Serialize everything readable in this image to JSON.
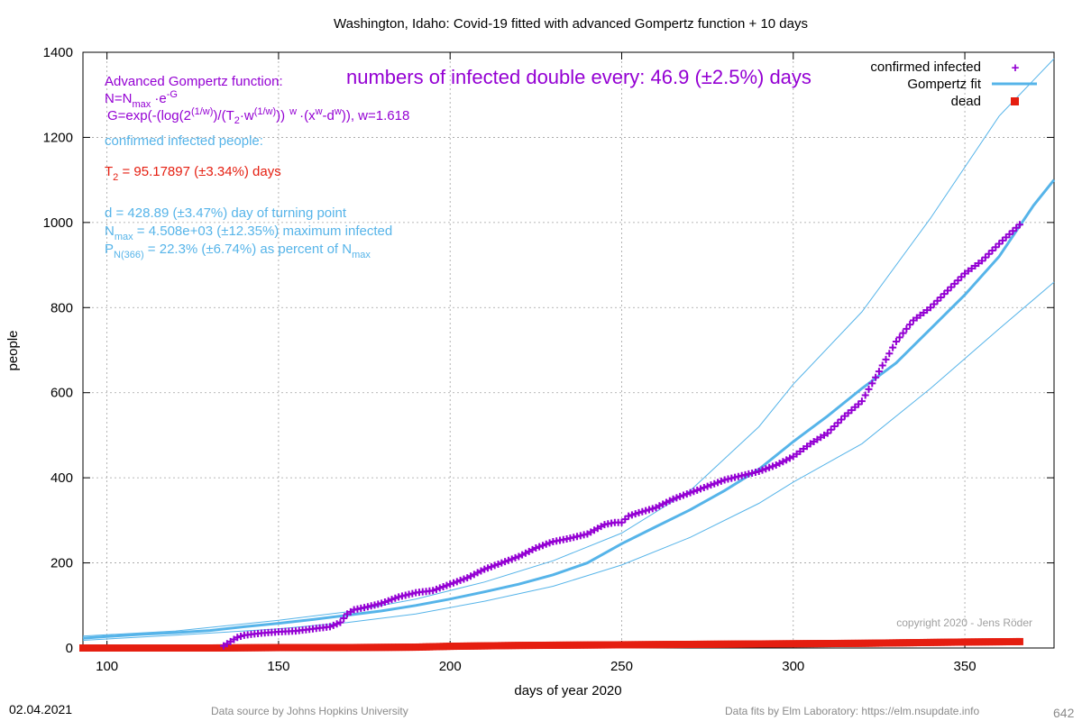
{
  "chart_data": {
    "type": "scatter",
    "title": "Washington,  Idaho: Covid-19 fitted with advanced Gompertz function + 10 days",
    "xlabel": "days of year 2020",
    "ylabel": "people",
    "xlim": [
      93,
      376
    ],
    "ylim": [
      0,
      1400
    ],
    "xticks": [
      100,
      150,
      200,
      250,
      300,
      350
    ],
    "yticks": [
      0,
      200,
      400,
      600,
      800,
      1000,
      1200,
      1400
    ],
    "grid": true,
    "legend_position": "top-right",
    "legend": [
      "confirmed infected",
      "Gompertz fit",
      "dead"
    ],
    "colors": {
      "confirmed": "#9400d3",
      "fit": "#56b4e9",
      "dead": "#e51e10",
      "headline": "#9400d3",
      "t2": "#e51e10",
      "info": "#56b4e9"
    },
    "series": [
      {
        "name": "confirmed infected",
        "kind": "points",
        "x": [
          134,
          136,
          138,
          140,
          145,
          150,
          155,
          160,
          165,
          168,
          170,
          172,
          175,
          180,
          185,
          190,
          195,
          200,
          205,
          210,
          215,
          220,
          225,
          230,
          235,
          240,
          245,
          248,
          250,
          252,
          255,
          260,
          265,
          270,
          275,
          280,
          285,
          290,
          295,
          300,
          305,
          310,
          315,
          320,
          325,
          330,
          335,
          340,
          345,
          350,
          355,
          360,
          366
        ],
        "y": [
          5,
          15,
          25,
          30,
          35,
          38,
          40,
          45,
          50,
          60,
          80,
          90,
          95,
          105,
          120,
          130,
          135,
          150,
          165,
          185,
          200,
          215,
          235,
          250,
          258,
          268,
          290,
          295,
          295,
          310,
          318,
          330,
          350,
          365,
          380,
          395,
          405,
          415,
          430,
          450,
          480,
          505,
          545,
          580,
          650,
          720,
          770,
          800,
          840,
          880,
          910,
          950,
          995
        ]
      },
      {
        "name": "Gompertz fit",
        "kind": "line",
        "x": [
          93,
          100,
          110,
          120,
          130,
          140,
          150,
          160,
          170,
          180,
          190,
          200,
          210,
          220,
          230,
          240,
          250,
          260,
          270,
          280,
          290,
          300,
          310,
          320,
          330,
          340,
          350,
          360,
          370,
          376
        ],
        "y": [
          23,
          27,
          32,
          36,
          41,
          50,
          58,
          67,
          77,
          87,
          100,
          115,
          132,
          150,
          172,
          200,
          245,
          285,
          325,
          370,
          420,
          485,
          545,
          610,
          670,
          750,
          830,
          920,
          1040,
          1100
        ]
      },
      {
        "name": "upper bound",
        "kind": "thin-line",
        "x": [
          93,
          120,
          150,
          170,
          190,
          210,
          230,
          250,
          270,
          290,
          300,
          320,
          340,
          360,
          376
        ],
        "y": [
          28,
          40,
          65,
          85,
          115,
          155,
          205,
          270,
          370,
          520,
          620,
          790,
          1010,
          1250,
          1385
        ]
      },
      {
        "name": "lower bound",
        "kind": "thin-line",
        "x": [
          93,
          120,
          150,
          170,
          190,
          210,
          230,
          250,
          270,
          290,
          300,
          320,
          340,
          360,
          376
        ],
        "y": [
          18,
          30,
          45,
          60,
          80,
          110,
          145,
          195,
          260,
          340,
          390,
          480,
          610,
          750,
          860
        ]
      },
      {
        "name": "dead",
        "kind": "points",
        "x": [
          93,
          110,
          130,
          150,
          170,
          190,
          200,
          220,
          240,
          260,
          280,
          300,
          320,
          340,
          350,
          366
        ],
        "y": [
          0,
          0,
          0,
          1,
          1,
          2,
          4,
          6,
          7,
          8,
          9,
          10,
          11,
          13,
          14,
          15
        ]
      }
    ]
  },
  "annotations": {
    "headline": "numbers of infected double every: 46.9 (±2.5%) days",
    "gompertz_title": "Advanced Gompertz function:",
    "n_eq_prefix": "N=N",
    "n_eq_sub": "max",
    "n_eq_mid": " ·e",
    "n_eq_sup": "-G",
    "g_a": "G=exp(-(log(2",
    "g_b": "(1/w)",
    "g_c": ")/(T",
    "g_d": "2",
    "g_e": "·w",
    "g_f": "(1/w)",
    "g_g": "))",
    "g_h": "w",
    "g_i": "·(x",
    "g_j": "w",
    "g_k": "-d",
    "g_l": "w",
    "g_m": ")), w=1.618",
    "confirmed_label": "confirmed infected people:",
    "t2_prefix": "T",
    "t2_sub": "2",
    "t2_rest": " = 95.17897 (±3.34%) days",
    "turning_point": "d = 428.89 (±3.47%) day of turning point",
    "nmax_prefix": "N",
    "nmax_sub": "max",
    "nmax_rest": " = 4.508e+03 (±12.35%) maximum infected",
    "pn_prefix": "P",
    "pn_sub": "N(366)",
    "pn_mid": " = 22.3% (±6.74%) as percent of N",
    "pn_sub2": "max",
    "copyright": "copyright 2020 - Jens Röder"
  },
  "footer": {
    "date": "02.04.2021",
    "source": "Data source by Johns Hopkins University",
    "fits": "Data fits by Elm Laboratory: https://elm.nsupdate.info",
    "number": "642"
  }
}
